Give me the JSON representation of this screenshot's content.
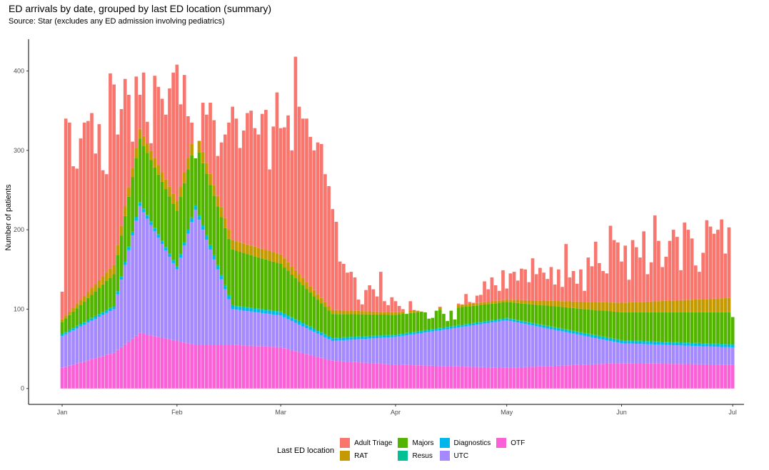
{
  "chart_data": {
    "type": "bar",
    "stacked": true,
    "title": "ED arrivals by date, grouped by last ED location (summary)",
    "subtitle": "Source: Star (excludes any ED admission involving pediatrics)",
    "ylabel": "Number of patients",
    "xlabel": "",
    "ylim": [
      -20,
      440
    ],
    "yticks": [
      0,
      100,
      200,
      300,
      400
    ],
    "x_start": "2021-01-01",
    "x_end": "2021-06-30",
    "xticks": [
      {
        "label": "Jan",
        "date": "2021-01-01"
      },
      {
        "label": "Feb",
        "date": "2021-02-01"
      },
      {
        "label": "Mar",
        "date": "2021-03-01"
      },
      {
        "label": "Apr",
        "date": "2021-04-01"
      },
      {
        "label": "May",
        "date": "2021-05-01"
      },
      {
        "label": "Jun",
        "date": "2021-06-01"
      },
      {
        "label": "Jul",
        "date": "2021-07-01"
      }
    ],
    "legend_title": "Last ED location",
    "legend_position": "bottom",
    "legend_order": [
      "Adult Triage",
      "RAT",
      "Majors",
      "Resus",
      "Diagnostics",
      "UTC",
      "OTF"
    ],
    "stack_order": [
      "OTF",
      "UTC",
      "Diagnostics",
      "Resus",
      "Majors",
      "RAT",
      "Adult Triage"
    ],
    "colors": {
      "Adult Triage": "#F8766D",
      "RAT": "#C49A00",
      "Majors": "#53B400",
      "Resus": "#00C094",
      "Diagnostics": "#00B6EB",
      "UTC": "#A58AFF",
      "OTF": "#FB61D7"
    },
    "totals": [
      122,
      340,
      335,
      280,
      277,
      315,
      335,
      337,
      347,
      296,
      333,
      275,
      270,
      397,
      383,
      320,
      352,
      390,
      370,
      311,
      393,
      370,
      398,
      336,
      309,
      394,
      380,
      365,
      345,
      378,
      398,
      408,
      358,
      395,
      343,
      335,
      290,
      312,
      360,
      345,
      360,
      338,
      293,
      310,
      320,
      335,
      355,
      340,
      303,
      325,
      347,
      350,
      328,
      320,
      346,
      351,
      276,
      330,
      373,
      328,
      329,
      344,
      300,
      418,
      355,
      340,
      340,
      317,
      300,
      310,
      308,
      270,
      255,
      226,
      210,
      160,
      157,
      146,
      147,
      140,
      112,
      106,
      124,
      130,
      125,
      116,
      147,
      110,
      105,
      115,
      110,
      104,
      100,
      94,
      110,
      99,
      98,
      97,
      96,
      88,
      89,
      98,
      103,
      94,
      85,
      98,
      87,
      107,
      106,
      119,
      109,
      108,
      117,
      118,
      135,
      125,
      140,
      130,
      123,
      149,
      126,
      145,
      147,
      136,
      151,
      150,
      134,
      164,
      144,
      152,
      146,
      138,
      153,
      131,
      150,
      128,
      182,
      140,
      148,
      132,
      150,
      123,
      165,
      154,
      185,
      158,
      148,
      145,
      205,
      187,
      184,
      160,
      180,
      137,
      187,
      178,
      165,
      198,
      144,
      159,
      218,
      186,
      153,
      166,
      186,
      200,
      191,
      149,
      209,
      200,
      189,
      155,
      147,
      171,
      212,
      204,
      195,
      200,
      213,
      170,
      203,
      90
    ],
    "stack_splits": [
      {
        "date": "2021-01-01",
        "OTF": 26,
        "UTC": 40,
        "Diagnostics": 2,
        "Resus": 1,
        "Majors": 15,
        "RAT": 3
      },
      {
        "date": "2021-01-15",
        "OTF": 45,
        "UTC": 55,
        "Diagnostics": 3,
        "Resus": 1,
        "Majors": 40,
        "RAT": 12
      },
      {
        "date": "2021-01-22",
        "OTF": 70,
        "UTC": 160,
        "Diagnostics": 4,
        "Resus": 1,
        "Majors": 80,
        "RAT": 12
      },
      {
        "date": "2021-02-01",
        "OTF": 60,
        "UTC": 90,
        "Diagnostics": 3,
        "Resus": 1,
        "Majors": 70,
        "RAT": 12
      },
      {
        "date": "2021-02-06",
        "OTF": 55,
        "UTC": 170,
        "Diagnostics": 4,
        "Resus": 2,
        "Majors": 80,
        "RAT": 15
      },
      {
        "date": "2021-02-16",
        "OTF": 55,
        "UTC": 45,
        "Diagnostics": 4,
        "Resus": 1,
        "Majors": 70,
        "RAT": 12
      },
      {
        "date": "2021-03-01",
        "OTF": 52,
        "UTC": 40,
        "Diagnostics": 4,
        "Resus": 1,
        "Majors": 60,
        "RAT": 12
      },
      {
        "date": "2021-03-15",
        "OTF": 35,
        "UTC": 25,
        "Diagnostics": 3,
        "Resus": 1,
        "Majors": 30,
        "RAT": 5
      },
      {
        "date": "2021-04-01",
        "OTF": 30,
        "UTC": 35,
        "Diagnostics": 2,
        "Resus": 1,
        "Majors": 25,
        "RAT": 3
      },
      {
        "date": "2021-05-01",
        "OTF": 26,
        "UTC": 60,
        "Diagnostics": 2,
        "Resus": 1,
        "Majors": 20,
        "RAT": 3
      },
      {
        "date": "2021-06-01",
        "OTF": 32,
        "UTC": 25,
        "Diagnostics": 3,
        "Resus": 1,
        "Majors": 35,
        "RAT": 12
      },
      {
        "date": "2021-06-30",
        "OTF": 30,
        "UTC": 22,
        "Diagnostics": 3,
        "Resus": 1,
        "Majors": 40,
        "RAT": 18
      }
    ]
  }
}
